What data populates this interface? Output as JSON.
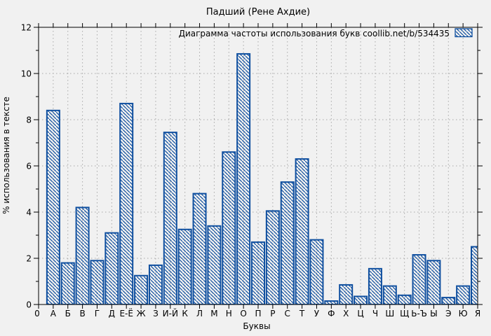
{
  "title": "Падший (Рене Ахдие)",
  "legend": {
    "label": "Диаграмма частоты использования букв  coollib.net/b/534435",
    "position": "top-right"
  },
  "axes": {
    "xlabel": "Буквы",
    "ylabel": "% использования в тексте",
    "origin_label": "0"
  },
  "colors": {
    "bar": "#0f4f9f",
    "background": "#f1f1f1",
    "grid": "#a8a8a8",
    "axis": "#000000",
    "text": "#000000"
  },
  "chart_data": {
    "type": "bar",
    "title": "Падший (Рене Ахдие)",
    "legend": "Диаграмма частоты использования букв  coollib.net/b/534435",
    "legend_position": "top-right",
    "xlabel": "Буквы",
    "ylabel": "% использования в тексте",
    "bar_style": "hatched-outline",
    "grid": true,
    "ylim": [
      0,
      12
    ],
    "ytick_major_step": 2,
    "ytick_minor_step": 1,
    "x_origin_label": "0",
    "categories": [
      "А",
      "Б",
      "В",
      "Г",
      "Д",
      "Е-Ё",
      "Ж",
      "З",
      "И-Й",
      "К",
      "Л",
      "М",
      "Н",
      "О",
      "П",
      "Р",
      "С",
      "Т",
      "У",
      "Ф",
      "Х",
      "Ц",
      "Ч",
      "Ш",
      "Щ",
      "Ь-Ъ",
      "Ы",
      "Э",
      "Ю",
      "Я"
    ],
    "values": [
      8.4,
      1.8,
      4.2,
      1.9,
      3.1,
      8.7,
      1.25,
      1.7,
      7.45,
      3.25,
      4.8,
      3.4,
      6.6,
      10.85,
      2.7,
      4.05,
      5.3,
      6.3,
      2.8,
      0.15,
      0.85,
      0.35,
      1.55,
      0.8,
      0.4,
      2.15,
      1.9,
      0.3,
      0.8,
      2.5
    ]
  }
}
